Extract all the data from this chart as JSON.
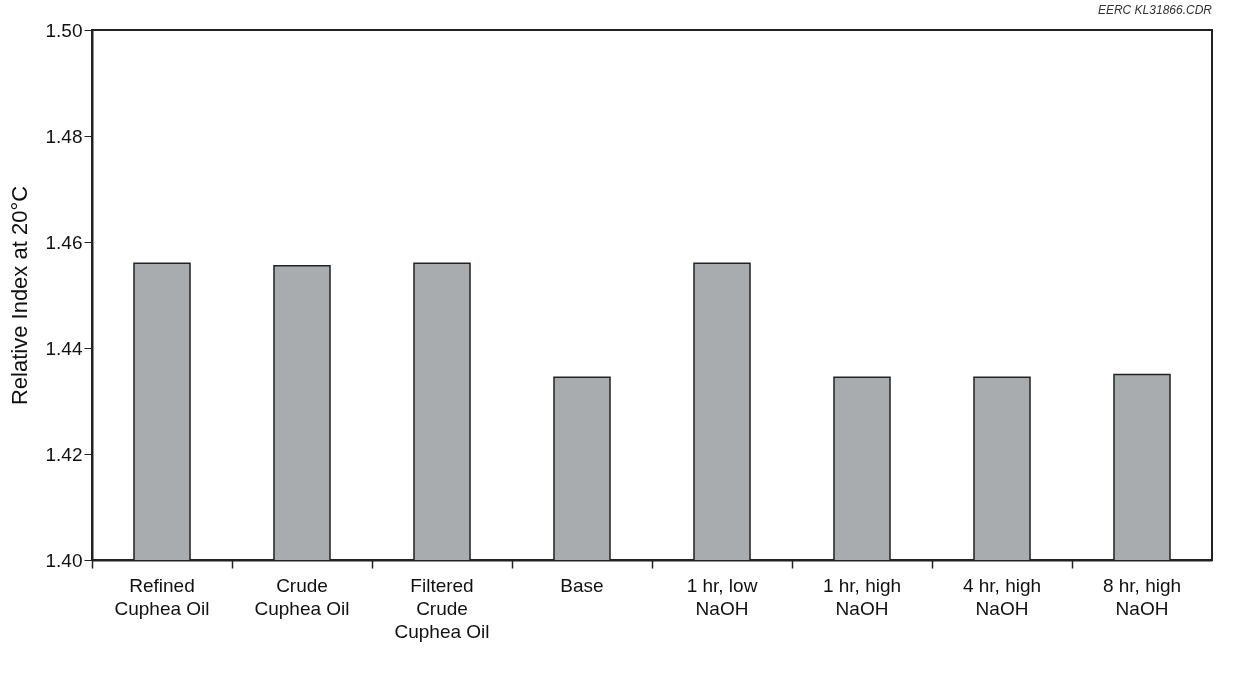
{
  "chart_data": {
    "type": "bar",
    "categories": [
      "Refined\nCuphea Oil",
      "Crude\nCuphea Oil",
      "Filtered\nCrude\nCuphea Oil",
      "Base",
      "1 hr, low\nNaOH",
      "1 hr, high\nNaOH",
      "4 hr, high\nNaOH",
      "8 hr, high\nNaOH"
    ],
    "values": [
      1.456,
      1.4555,
      1.456,
      1.4345,
      1.456,
      1.4345,
      1.4345,
      1.435
    ],
    "color": "#a9acae",
    "ylabel": "Relative Index at 20°C",
    "ylim": [
      1.4,
      1.5
    ],
    "yticks": [
      {
        "value": 1.4,
        "label": "1.40"
      },
      {
        "value": 1.42,
        "label": "1.42"
      },
      {
        "value": 1.44,
        "label": "1.44"
      },
      {
        "value": 1.46,
        "label": "1.46"
      },
      {
        "value": 1.48,
        "label": "1.48"
      },
      {
        "value": 1.5,
        "label": "1.50"
      }
    ],
    "grid": false,
    "annotations": [
      "EERC KL31866.CDR"
    ]
  }
}
